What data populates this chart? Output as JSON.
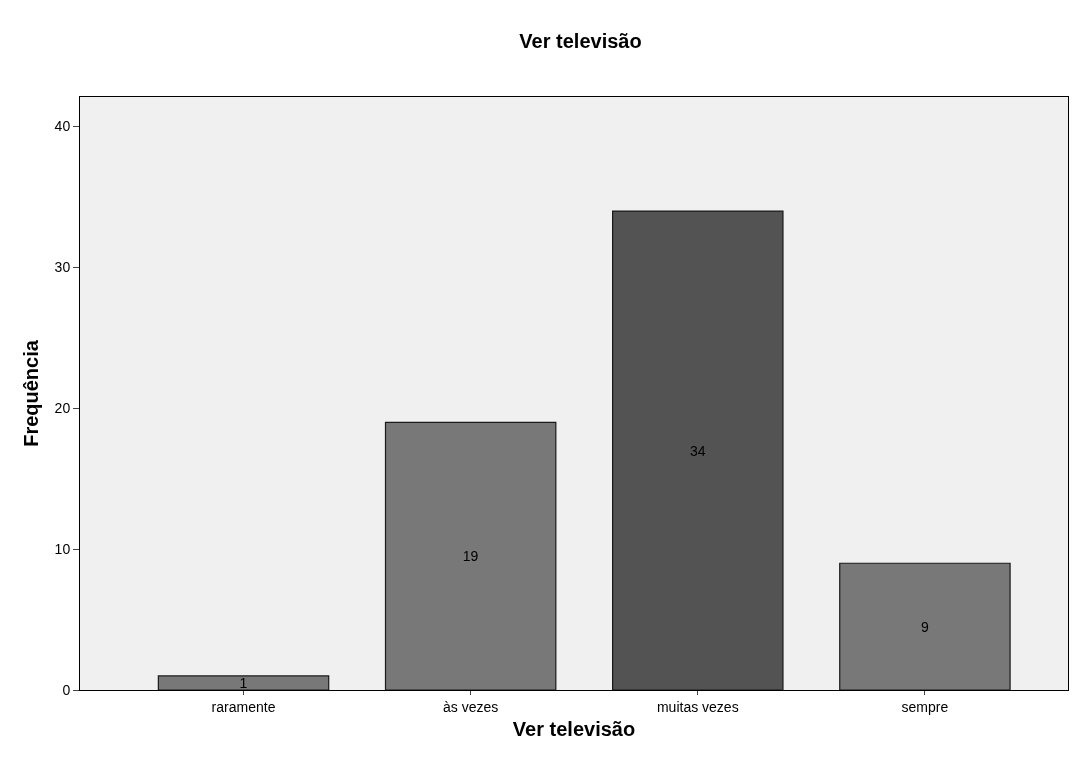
{
  "chart_data": {
    "type": "bar",
    "title": "Ver televisão",
    "xlabel": "Ver televisão",
    "ylabel": "Frequência",
    "categories": [
      "raramente",
      "às vezes",
      "muitas vezes",
      "sempre"
    ],
    "values": [
      1,
      19,
      34,
      9
    ],
    "colors": [
      "#787878",
      "#787878",
      "#535353",
      "#787878"
    ],
    "ylim": [
      0,
      42.1
    ],
    "yticks": [
      0,
      10,
      20,
      30,
      40
    ],
    "grid": false,
    "data_labels": true
  }
}
